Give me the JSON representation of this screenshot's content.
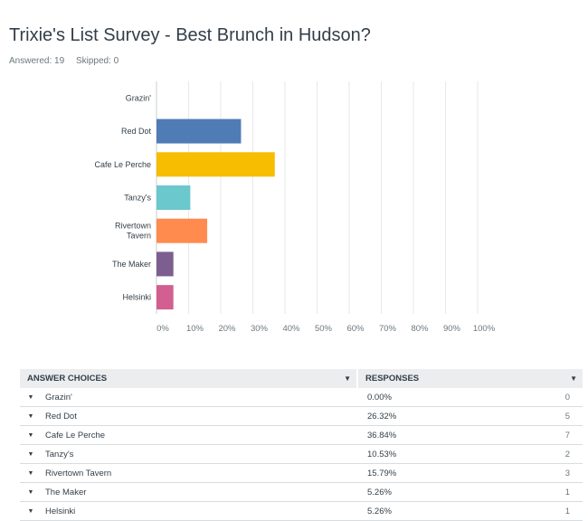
{
  "survey": {
    "title": "Trixie's List Survey - Best Brunch in Hudson?",
    "answered": "Answered: 19",
    "skipped": "Skipped: 0"
  },
  "chart_data": {
    "type": "bar",
    "orientation": "horizontal",
    "categories": [
      "Grazin'",
      "Red Dot",
      "Cafe Le Perche",
      "Tanzy's",
      "Rivertown Tavern",
      "The Maker",
      "Helsinki"
    ],
    "values": [
      0,
      26.32,
      36.84,
      10.53,
      15.79,
      5.26,
      5.26
    ],
    "colors": [
      "#2f5f98",
      "#507cb6",
      "#f7bd00",
      "#6bc8cd",
      "#ff8b4f",
      "#7d5e90",
      "#d25f90"
    ],
    "xlim": [
      0,
      100
    ],
    "xticks": [
      "0%",
      "10%",
      "20%",
      "30%",
      "40%",
      "50%",
      "60%",
      "70%",
      "80%",
      "90%",
      "100%"
    ],
    "grid": true
  },
  "table": {
    "headers": {
      "choices": "ANSWER CHOICES",
      "responses": "RESPONSES"
    },
    "rows": [
      {
        "label": "Grazin'",
        "percent": "0.00%",
        "count": "0"
      },
      {
        "label": "Red Dot",
        "percent": "26.32%",
        "count": "5"
      },
      {
        "label": "Cafe Le Perche",
        "percent": "36.84%",
        "count": "7"
      },
      {
        "label": "Tanzy's",
        "percent": "10.53%",
        "count": "2"
      },
      {
        "label": "Rivertown Tavern",
        "percent": "15.79%",
        "count": "3"
      },
      {
        "label": "The Maker",
        "percent": "5.26%",
        "count": "1"
      },
      {
        "label": "Helsinki",
        "percent": "5.26%",
        "count": "1"
      }
    ]
  }
}
